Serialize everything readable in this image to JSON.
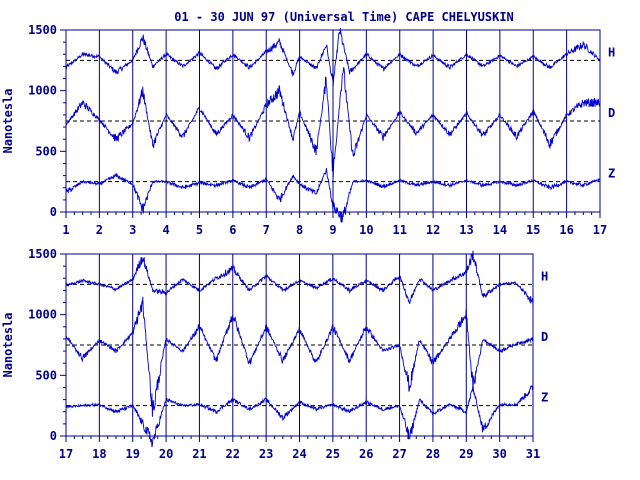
{
  "title": "01 - 30 JUN 97 (Universal Time) CAPE CHELYUSKIN",
  "colors": {
    "ink": "#00008b",
    "trace": "#0000cd",
    "background": "#ffffff"
  },
  "chart_data": [
    {
      "type": "line",
      "ylabel": "Nanotesla",
      "ylim": [
        0,
        1500
      ],
      "yticks": [
        "0",
        "500",
        "1000",
        "1500"
      ],
      "xlim": [
        1,
        17
      ],
      "xticks": [
        "1",
        "2",
        "3",
        "4",
        "5",
        "6",
        "7",
        "8",
        "9",
        "10",
        "11",
        "12",
        "13",
        "14",
        "15",
        "16",
        "17"
      ],
      "grid": "vertical lines at each day",
      "baselines": [
        1250,
        750,
        250
      ],
      "series": [
        {
          "name": "H",
          "baseline": 1250,
          "points": [
            [
              1,
              1190
            ],
            [
              1.5,
              1300
            ],
            [
              2,
              1280
            ],
            [
              2.5,
              1150
            ],
            [
              3,
              1250
            ],
            [
              3.3,
              1440
            ],
            [
              3.6,
              1200
            ],
            [
              4,
              1300
            ],
            [
              4.5,
              1200
            ],
            [
              5,
              1310
            ],
            [
              5.5,
              1180
            ],
            [
              6,
              1300
            ],
            [
              6.5,
              1190
            ],
            [
              7,
              1320
            ],
            [
              7.4,
              1400
            ],
            [
              7.8,
              1140
            ],
            [
              8,
              1280
            ],
            [
              8.5,
              1180
            ],
            [
              8.8,
              1380
            ],
            [
              9,
              1050
            ],
            [
              9.2,
              1500
            ],
            [
              9.5,
              1150
            ],
            [
              10,
              1300
            ],
            [
              10.5,
              1180
            ],
            [
              11,
              1300
            ],
            [
              11.5,
              1200
            ],
            [
              12,
              1290
            ],
            [
              12.5,
              1190
            ],
            [
              13,
              1300
            ],
            [
              13.5,
              1200
            ],
            [
              14,
              1290
            ],
            [
              14.5,
              1200
            ],
            [
              15,
              1280
            ],
            [
              15.5,
              1190
            ],
            [
              16,
              1300
            ],
            [
              16.5,
              1380
            ],
            [
              17,
              1250
            ]
          ]
        },
        {
          "name": "D",
          "baseline": 750,
          "points": [
            [
              1,
              720
            ],
            [
              1.5,
              900
            ],
            [
              2,
              760
            ],
            [
              2.5,
              600
            ],
            [
              3,
              730
            ],
            [
              3.3,
              1000
            ],
            [
              3.6,
              550
            ],
            [
              4,
              800
            ],
            [
              4.5,
              620
            ],
            [
              5,
              860
            ],
            [
              5.5,
              640
            ],
            [
              6,
              800
            ],
            [
              6.5,
              610
            ],
            [
              7,
              880
            ],
            [
              7.4,
              1000
            ],
            [
              7.8,
              600
            ],
            [
              8,
              820
            ],
            [
              8.5,
              500
            ],
            [
              8.8,
              1100
            ],
            [
              9,
              300
            ],
            [
              9.3,
              1200
            ],
            [
              9.6,
              450
            ],
            [
              10,
              800
            ],
            [
              10.5,
              620
            ],
            [
              11,
              820
            ],
            [
              11.5,
              650
            ],
            [
              12,
              800
            ],
            [
              12.5,
              640
            ],
            [
              13,
              810
            ],
            [
              13.5,
              630
            ],
            [
              14,
              800
            ],
            [
              14.5,
              620
            ],
            [
              15,
              830
            ],
            [
              15.5,
              560
            ],
            [
              16,
              800
            ],
            [
              16.5,
              900
            ],
            [
              17,
              900
            ]
          ]
        },
        {
          "name": "Z",
          "baseline": 250,
          "points": [
            [
              1,
              160
            ],
            [
              1.5,
              250
            ],
            [
              2,
              230
            ],
            [
              2.5,
              300
            ],
            [
              3,
              230
            ],
            [
              3.3,
              20
            ],
            [
              3.6,
              250
            ],
            [
              4,
              250
            ],
            [
              4.5,
              200
            ],
            [
              5,
              240
            ],
            [
              5.5,
              220
            ],
            [
              6,
              260
            ],
            [
              6.5,
              200
            ],
            [
              7,
              270
            ],
            [
              7.4,
              100
            ],
            [
              7.8,
              300
            ],
            [
              8,
              230
            ],
            [
              8.5,
              150
            ],
            [
              8.8,
              350
            ],
            [
              9,
              50
            ],
            [
              9.3,
              -50
            ],
            [
              9.6,
              250
            ],
            [
              10,
              260
            ],
            [
              10.5,
              210
            ],
            [
              11,
              260
            ],
            [
              11.5,
              220
            ],
            [
              12,
              250
            ],
            [
              12.5,
              220
            ],
            [
              13,
              260
            ],
            [
              13.5,
              220
            ],
            [
              14,
              250
            ],
            [
              14.5,
              220
            ],
            [
              15,
              260
            ],
            [
              15.5,
              200
            ],
            [
              16,
              250
            ],
            [
              16.5,
              220
            ],
            [
              17,
              270
            ]
          ]
        }
      ]
    },
    {
      "type": "line",
      "ylabel": "Nanotesla",
      "ylim": [
        0,
        1500
      ],
      "yticks": [
        "0",
        "500",
        "1000",
        "1500"
      ],
      "xlim": [
        17,
        31
      ],
      "xticks": [
        "17",
        "18",
        "19",
        "20",
        "21",
        "22",
        "23",
        "24",
        "25",
        "26",
        "27",
        "28",
        "29",
        "30",
        "31"
      ],
      "grid": "vertical lines at each day",
      "baselines": [
        1250,
        750,
        250
      ],
      "series": [
        {
          "name": "H",
          "baseline": 1250,
          "points": [
            [
              17,
              1240
            ],
            [
              17.5,
              1280
            ],
            [
              18,
              1250
            ],
            [
              18.5,
              1210
            ],
            [
              19,
              1290
            ],
            [
              19.3,
              1480
            ],
            [
              19.6,
              1200
            ],
            [
              20,
              1180
            ],
            [
              20.5,
              1290
            ],
            [
              21,
              1200
            ],
            [
              21.5,
              1300
            ],
            [
              22,
              1380
            ],
            [
              22.5,
              1200
            ],
            [
              23,
              1320
            ],
            [
              23.5,
              1200
            ],
            [
              24,
              1280
            ],
            [
              24.5,
              1220
            ],
            [
              25,
              1300
            ],
            [
              25.5,
              1200
            ],
            [
              26,
              1280
            ],
            [
              26.5,
              1200
            ],
            [
              27,
              1320
            ],
            [
              27.3,
              1100
            ],
            [
              27.6,
              1300
            ],
            [
              28,
              1200
            ],
            [
              28.5,
              1280
            ],
            [
              29,
              1350
            ],
            [
              29.2,
              1500
            ],
            [
              29.5,
              1150
            ],
            [
              30,
              1250
            ],
            [
              30.5,
              1260
            ],
            [
              31,
              1100
            ]
          ]
        },
        {
          "name": "D",
          "baseline": 750,
          "points": [
            [
              17,
              820
            ],
            [
              17.5,
              640
            ],
            [
              18,
              790
            ],
            [
              18.5,
              700
            ],
            [
              19,
              850
            ],
            [
              19.3,
              1100
            ],
            [
              19.6,
              200
            ],
            [
              20,
              800
            ],
            [
              20.5,
              700
            ],
            [
              21,
              900
            ],
            [
              21.5,
              620
            ],
            [
              22,
              1000
            ],
            [
              22.5,
              600
            ],
            [
              23,
              900
            ],
            [
              23.5,
              620
            ],
            [
              24,
              880
            ],
            [
              24.5,
              600
            ],
            [
              25,
              900
            ],
            [
              25.5,
              620
            ],
            [
              26,
              900
            ],
            [
              26.5,
              700
            ],
            [
              27,
              750
            ],
            [
              27.3,
              400
            ],
            [
              27.6,
              800
            ],
            [
              28,
              600
            ],
            [
              28.5,
              800
            ],
            [
              29,
              1000
            ],
            [
              29.2,
              400
            ],
            [
              29.5,
              800
            ],
            [
              30,
              700
            ],
            [
              30.5,
              760
            ],
            [
              31,
              800
            ]
          ]
        },
        {
          "name": "Z",
          "baseline": 250,
          "points": [
            [
              17,
              240
            ],
            [
              17.5,
              250
            ],
            [
              18,
              260
            ],
            [
              18.5,
              200
            ],
            [
              19,
              250
            ],
            [
              19.3,
              100
            ],
            [
              19.6,
              -50
            ],
            [
              20,
              300
            ],
            [
              20.5,
              250
            ],
            [
              21,
              260
            ],
            [
              21.5,
              200
            ],
            [
              22,
              300
            ],
            [
              22.5,
              220
            ],
            [
              23,
              300
            ],
            [
              23.5,
              150
            ],
            [
              24,
              280
            ],
            [
              24.5,
              220
            ],
            [
              25,
              260
            ],
            [
              25.5,
              200
            ],
            [
              26,
              280
            ],
            [
              26.5,
              220
            ],
            [
              27,
              250
            ],
            [
              27.3,
              -20
            ],
            [
              27.6,
              300
            ],
            [
              28,
              180
            ],
            [
              28.5,
              260
            ],
            [
              29,
              200
            ],
            [
              29.2,
              400
            ],
            [
              29.5,
              50
            ],
            [
              30,
              260
            ],
            [
              30.5,
              260
            ],
            [
              31,
              400
            ]
          ]
        }
      ]
    }
  ]
}
